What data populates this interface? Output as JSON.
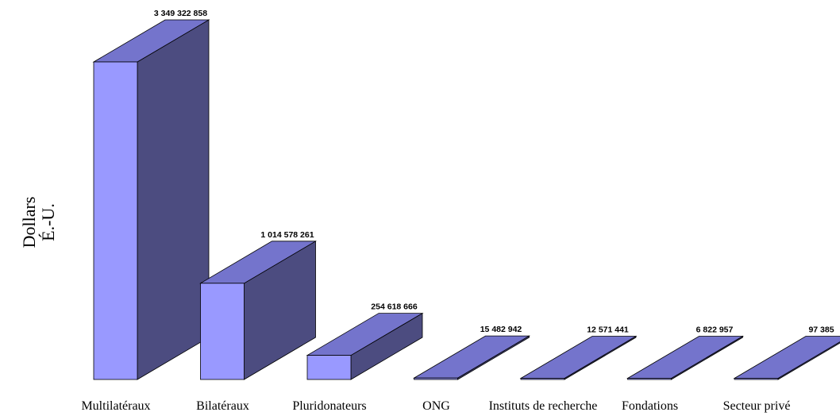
{
  "chart_data": {
    "type": "bar",
    "style": "3d",
    "ylabel_lines": [
      "Dollars",
      "É.-U."
    ],
    "xlabel": "",
    "grid": false,
    "legend": "none",
    "categories": [
      "Multilatéraux",
      "Bilatéraux",
      "Pluridonateurs",
      "ONG",
      "Instituts de recherche",
      "Fondations",
      "Secteur privé"
    ],
    "values": [
      3349322858,
      1014578261,
      254618666,
      15482942,
      12571441,
      6822957,
      97385
    ],
    "value_labels": [
      "3 349 322 858",
      "1 014 578 261",
      "254 618 666",
      "15 482 942",
      "12 571 441",
      "6 822 957",
      "97 385"
    ],
    "colors": {
      "front": "#9999ff",
      "top": "#7474cc",
      "side": "#4c4c80",
      "edge": "#000000"
    }
  }
}
